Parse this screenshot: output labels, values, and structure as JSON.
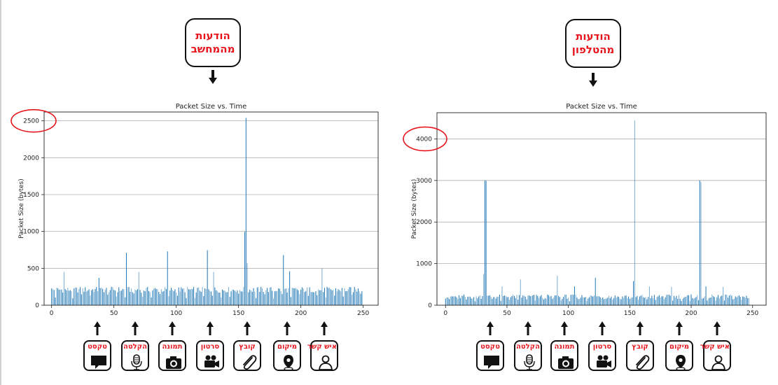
{
  "callouts": {
    "left": [
      "הודעות",
      "מהמחשב"
    ],
    "right": [
      "הודעות",
      "מהטלפון"
    ]
  },
  "icon_labels": [
    "טקסט",
    "הקלטה",
    "תמונה",
    "סרטון",
    "קובץ",
    "מיקום",
    "איש קשר"
  ],
  "icon_names": [
    "chat-bubble-icon",
    "microphone-icon",
    "camera-icon",
    "video-camera-icon",
    "paperclip-icon",
    "location-pin-icon",
    "person-icon"
  ],
  "colors": {
    "bar": "#1f77b4",
    "accent": "#e8141c",
    "grid": "#b0b0b0"
  },
  "chart_data": [
    {
      "type": "bar",
      "title": "Packet Size vs. Time",
      "xlabel": "",
      "ylabel": "Packet Size (bytes)",
      "xlim": [
        -6,
        262
      ],
      "ylim": [
        0,
        2620
      ],
      "xticks": [
        0,
        50,
        100,
        150,
        200,
        250
      ],
      "yticks": [
        0,
        500,
        1000,
        1500,
        2000,
        2500
      ],
      "grid": "horizontal",
      "highlighted_tick": "2500",
      "baseline": {
        "x_start": 0,
        "x_end": 249,
        "step": 1,
        "typical_min": 170,
        "typical_max": 250
      },
      "spikes": [
        {
          "x": 10,
          "y": 450
        },
        {
          "x": 38,
          "y": 370
        },
        {
          "x": 60,
          "y": 710
        },
        {
          "x": 70,
          "y": 450
        },
        {
          "x": 93,
          "y": 730
        },
        {
          "x": 125,
          "y": 745
        },
        {
          "x": 130,
          "y": 450
        },
        {
          "x": 155,
          "y": 995
        },
        {
          "x": 156,
          "y": 2540
        },
        {
          "x": 157,
          "y": 570
        },
        {
          "x": 186,
          "y": 680
        },
        {
          "x": 191,
          "y": 460
        },
        {
          "x": 217,
          "y": 500
        }
      ]
    },
    {
      "type": "bar",
      "title": "Packet Size vs. Time",
      "xlabel": "",
      "ylabel": "Packet Size (bytes)",
      "xlim": [
        -7,
        261
      ],
      "ylim": [
        0,
        4630
      ],
      "xticks": [
        0,
        50,
        100,
        150,
        200,
        250
      ],
      "yticks": [
        0,
        1000,
        2000,
        3000,
        4000
      ],
      "grid": "horizontal",
      "highlighted_tick": "4000",
      "baseline": {
        "x_start": 0,
        "x_end": 247,
        "step": 1,
        "typical_min": 150,
        "typical_max": 260
      },
      "spikes": [
        {
          "x": 31,
          "y": 750
        },
        {
          "x": 32,
          "y": 3000
        },
        {
          "x": 33,
          "y": 2990
        },
        {
          "x": 46,
          "y": 450
        },
        {
          "x": 61,
          "y": 620
        },
        {
          "x": 91,
          "y": 710
        },
        {
          "x": 105,
          "y": 450
        },
        {
          "x": 122,
          "y": 660
        },
        {
          "x": 153,
          "y": 580
        },
        {
          "x": 154,
          "y": 4440
        },
        {
          "x": 166,
          "y": 450
        },
        {
          "x": 184,
          "y": 440
        },
        {
          "x": 207,
          "y": 3000
        },
        {
          "x": 208,
          "y": 2960
        },
        {
          "x": 212,
          "y": 450
        },
        {
          "x": 226,
          "y": 440
        }
      ]
    }
  ]
}
